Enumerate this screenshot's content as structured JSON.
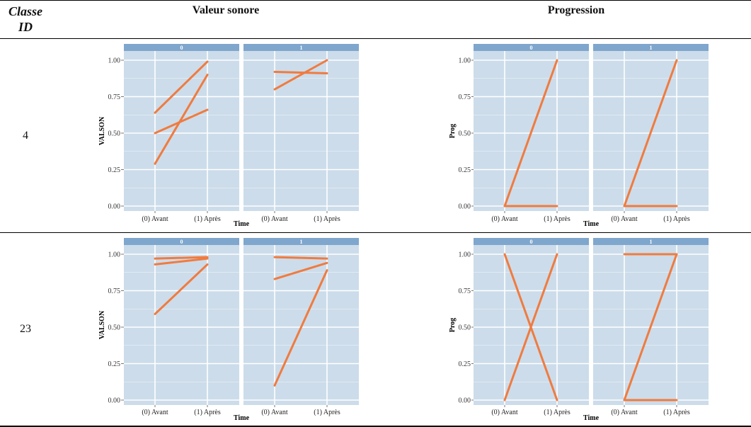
{
  "headers": {
    "classe_line1": "Classe",
    "classe_line2": "ID",
    "valeur": "Valeur sonore",
    "progression": "Progression"
  },
  "rows": [
    {
      "id": "4"
    },
    {
      "id": "23"
    }
  ],
  "colors": {
    "panel_bg": "#ccdcea",
    "strip_bg": "#7fa6cd",
    "line": "#f07b3f",
    "grid": "#ffffff"
  },
  "chart_data": [
    {
      "type": "line",
      "row": "4",
      "column": "Valeur sonore",
      "xlabel": "Time",
      "ylabel": "VALSON",
      "x": [
        "(0) Avant",
        "(1) Après"
      ],
      "ylim": [
        0,
        1.05
      ],
      "yticks": [
        "0.00",
        "0.25",
        "0.50",
        "0.75",
        "1.00"
      ],
      "facets": [
        {
          "label": "0",
          "series": [
            {
              "values": [
                0.64,
                0.99
              ]
            },
            {
              "values": [
                0.5,
                0.66
              ]
            },
            {
              "values": [
                0.29,
                0.9
              ]
            }
          ]
        },
        {
          "label": "1",
          "series": [
            {
              "values": [
                0.92,
                0.91
              ]
            },
            {
              "values": [
                0.8,
                1.0
              ]
            }
          ]
        }
      ]
    },
    {
      "type": "line",
      "row": "4",
      "column": "Progression",
      "xlabel": "Time",
      "ylabel": "Prog",
      "x": [
        "(0) Avant",
        "(1) Après"
      ],
      "ylim": [
        0,
        1.05
      ],
      "yticks": [
        "0.00",
        "0.25",
        "0.50",
        "0.75",
        "1.00"
      ],
      "facets": [
        {
          "label": "0",
          "series": [
            {
              "values": [
                0,
                0
              ]
            },
            {
              "values": [
                0,
                1
              ]
            }
          ]
        },
        {
          "label": "1",
          "series": [
            {
              "values": [
                0,
                0
              ]
            },
            {
              "values": [
                0,
                1
              ]
            }
          ]
        }
      ]
    },
    {
      "type": "line",
      "row": "23",
      "column": "Valeur sonore",
      "xlabel": "Time",
      "ylabel": "VALSON",
      "x": [
        "(0) Avant",
        "(1) Après"
      ],
      "ylim": [
        0,
        1.05
      ],
      "yticks": [
        "0.00",
        "0.25",
        "0.50",
        "0.75",
        "1.00"
      ],
      "facets": [
        {
          "label": "0",
          "series": [
            {
              "values": [
                0.97,
                0.98
              ]
            },
            {
              "values": [
                0.93,
                0.97
              ]
            },
            {
              "values": [
                0.59,
                0.93
              ]
            }
          ]
        },
        {
          "label": "1",
          "series": [
            {
              "values": [
                0.98,
                0.97
              ]
            },
            {
              "values": [
                0.83,
                0.94
              ]
            },
            {
              "values": [
                0.1,
                0.89
              ]
            }
          ]
        }
      ]
    },
    {
      "type": "line",
      "row": "23",
      "column": "Progression",
      "xlabel": "Time",
      "ylabel": "Prog",
      "x": [
        "(0) Avant",
        "(1) Après"
      ],
      "ylim": [
        0,
        1.05
      ],
      "yticks": [
        "0.00",
        "0.25",
        "0.50",
        "0.75",
        "1.00"
      ],
      "facets": [
        {
          "label": "0",
          "series": [
            {
              "values": [
                1,
                0
              ]
            },
            {
              "values": [
                0,
                1
              ]
            }
          ]
        },
        {
          "label": "1",
          "series": [
            {
              "values": [
                1,
                1
              ]
            },
            {
              "values": [
                0,
                0
              ]
            },
            {
              "values": [
                0,
                1
              ]
            }
          ]
        }
      ]
    }
  ]
}
